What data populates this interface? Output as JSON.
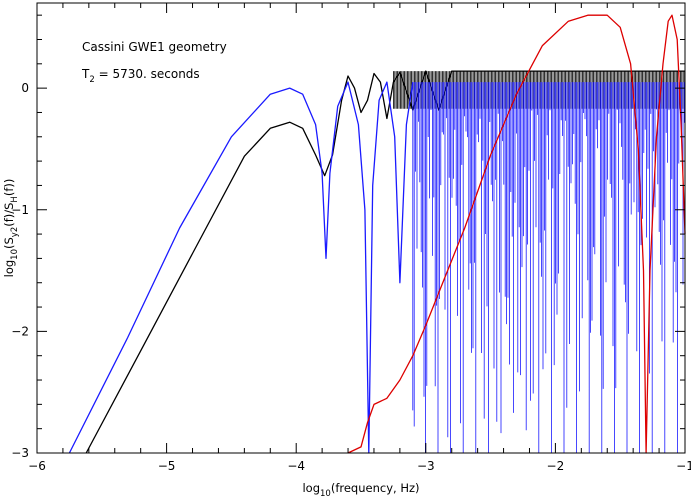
{
  "chart_data": {
    "type": "line",
    "xlabel": {
      "prefix": "log",
      "sub": "10",
      "rest": "(frequency, Hz)"
    },
    "ylabel": {
      "prefix": "log",
      "sub1": "10",
      "mid1": "(S",
      "sub2": "y2",
      "mid2": "(f)/S",
      "sub3": "H",
      "rest": "(f))"
    },
    "xlim": [
      -6,
      -1
    ],
    "ylim": [
      -3,
      0.7
    ],
    "x_ticks": [
      -6,
      -5,
      -4,
      -3,
      -2,
      -1
    ],
    "x_tick_labels": [
      "−6",
      "−5",
      "−4",
      "−3",
      "−2",
      "−1"
    ],
    "y_ticks": [
      -3,
      -2,
      -1,
      0
    ],
    "y_tick_labels": [
      "−3",
      "−2",
      "−1",
      "0"
    ],
    "annotations": {
      "line1": "Cassini GWE1 geometry",
      "line2_prefix": "T",
      "line2_sub": "2",
      "line2_rest": " = 5730. seconds"
    },
    "series": [
      {
        "color": "#000000",
        "points": [
          [
            -5.62,
            -3.0
          ],
          [
            -5.2,
            -2.16
          ],
          [
            -4.8,
            -1.36
          ],
          [
            -4.4,
            -0.56
          ],
          [
            -4.2,
            -0.33
          ],
          [
            -4.05,
            -0.28
          ],
          [
            -3.95,
            -0.33
          ],
          [
            -3.85,
            -0.55
          ],
          [
            -3.78,
            -0.72
          ],
          [
            -3.72,
            -0.55
          ],
          [
            -3.65,
            -0.1
          ],
          [
            -3.6,
            0.1
          ],
          [
            -3.55,
            0.0
          ],
          [
            -3.5,
            -0.2
          ],
          [
            -3.45,
            -0.1
          ],
          [
            -3.4,
            0.12
          ],
          [
            -3.35,
            0.05
          ],
          [
            -3.3,
            -0.25
          ],
          [
            -3.25,
            0.05
          ],
          [
            -3.2,
            0.13
          ],
          [
            -3.1,
            -0.18
          ],
          [
            -3.0,
            0.14
          ],
          [
            -2.9,
            -0.18
          ],
          [
            -2.8,
            0.14
          ],
          [
            -2.6,
            0.14
          ],
          [
            -1.0,
            0.14
          ]
        ],
        "dense_band": {
          "x_from": -3.25,
          "x_to": -1.0,
          "y_low": -0.17,
          "y_high": 0.14
        }
      },
      {
        "color": "#1a1aff",
        "points": [
          [
            -5.75,
            -3.0
          ],
          [
            -5.3,
            -2.05
          ],
          [
            -4.9,
            -1.15
          ],
          [
            -4.5,
            -0.4
          ],
          [
            -4.2,
            -0.05
          ],
          [
            -4.05,
            0.0
          ],
          [
            -3.95,
            -0.05
          ],
          [
            -3.85,
            -0.3
          ],
          [
            -3.8,
            -0.7
          ],
          [
            -3.77,
            -1.4
          ],
          [
            -3.74,
            -0.7
          ],
          [
            -3.68,
            -0.15
          ],
          [
            -3.6,
            0.05
          ],
          [
            -3.52,
            -0.3
          ],
          [
            -3.47,
            -1.0
          ],
          [
            -3.44,
            -3.0
          ],
          [
            -3.41,
            -0.8
          ],
          [
            -3.36,
            -0.1
          ],
          [
            -3.3,
            0.05
          ],
          [
            -3.24,
            -0.4
          ],
          [
            -3.2,
            -1.6
          ],
          [
            -3.15,
            -0.3
          ],
          [
            -3.1,
            0.05
          ]
        ],
        "dense_band": {
          "x_from": -3.1,
          "x_to": -1.0,
          "y_low": -3.0,
          "y_high": 0.05
        }
      },
      {
        "color": "#dd0000",
        "points": [
          [
            -3.6,
            -3.0
          ],
          [
            -3.5,
            -2.95
          ],
          [
            -3.45,
            -2.75
          ],
          [
            -3.4,
            -2.6
          ],
          [
            -3.3,
            -2.55
          ],
          [
            -3.2,
            -2.4
          ],
          [
            -3.1,
            -2.2
          ],
          [
            -3.0,
            -1.95
          ],
          [
            -2.85,
            -1.55
          ],
          [
            -2.7,
            -1.15
          ],
          [
            -2.5,
            -0.55
          ],
          [
            -2.3,
            -0.05
          ],
          [
            -2.1,
            0.35
          ],
          [
            -1.9,
            0.55
          ],
          [
            -1.75,
            0.6
          ],
          [
            -1.6,
            0.6
          ],
          [
            -1.5,
            0.5
          ],
          [
            -1.42,
            0.2
          ],
          [
            -1.36,
            -0.5
          ],
          [
            -1.32,
            -1.5
          ],
          [
            -1.3,
            -3.0
          ],
          [
            -1.27,
            -1.5
          ],
          [
            -1.22,
            -0.4
          ],
          [
            -1.17,
            0.2
          ],
          [
            -1.13,
            0.55
          ],
          [
            -1.1,
            0.6
          ],
          [
            -1.06,
            0.4
          ],
          [
            -1.03,
            -0.3
          ],
          [
            -1.0,
            -1.2
          ]
        ]
      }
    ]
  }
}
